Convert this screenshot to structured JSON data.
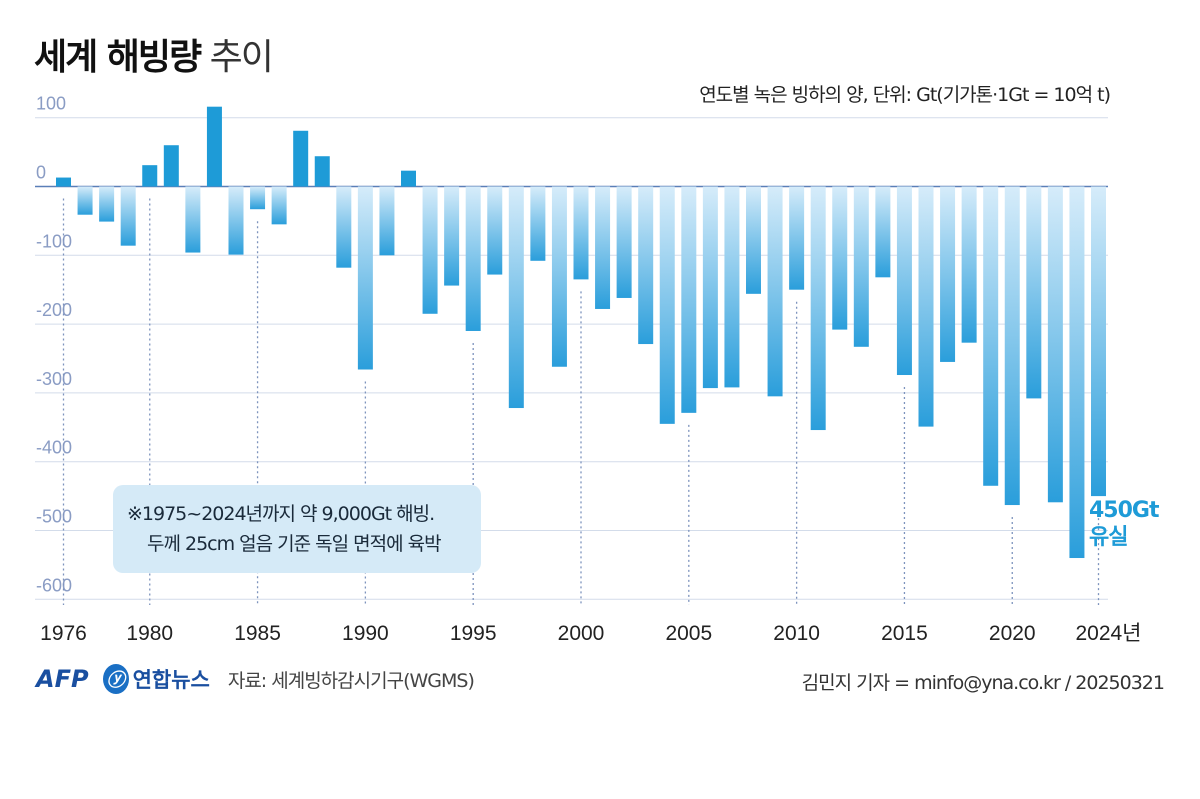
{
  "title_bold": "세계 해빙량",
  "title_light": "추이",
  "subtitle": "연도별 녹은 빙하의 양, 단위: Gt(기가톤·1Gt = 10억 t)",
  "note": [
    "※1975~2024년까지 약 9,000Gt 해빙.",
    "두께 25cm 얼음 기준 독일 면적에 육박"
  ],
  "callout": [
    "450Gt",
    "유실"
  ],
  "footer": {
    "afp": "AFP",
    "yna": "연합뉴스",
    "source": "자료: 세계빙하감시기구(WGMS)",
    "credit": "김민지 기자 = minfo@yna.co.kr / 20250321"
  },
  "colors": {
    "positive": "#1e9bd7",
    "negative_top": "#d6ecfa",
    "negative_bottom": "#2a9edb",
    "grid": "#d3dcea",
    "axis_label": "#8a9cc4"
  },
  "chart_data": {
    "type": "bar",
    "title": "세계 해빙량 추이",
    "ylabel": "Gt",
    "ylim": [
      -620,
      120
    ],
    "yticks": [
      100,
      0,
      -100,
      -200,
      -300,
      -400,
      -500,
      -600
    ],
    "ytick_labels": [
      "100",
      "0",
      "-100",
      "-200",
      "-300",
      "-400",
      "-500",
      "-600"
    ],
    "grid": true,
    "xtick_years": [
      1976,
      1980,
      1985,
      1990,
      1995,
      2000,
      2005,
      2010,
      2015,
      2020,
      2024
    ],
    "xtick_labels": [
      "1976",
      "1980",
      "1985",
      "1990",
      "1995",
      "2000",
      "2005",
      "2010",
      "2015",
      "2020",
      "2024년"
    ],
    "categories": [
      1976,
      1977,
      1978,
      1979,
      1980,
      1981,
      1982,
      1983,
      1984,
      1985,
      1986,
      1987,
      1988,
      1989,
      1990,
      1991,
      1992,
      1993,
      1994,
      1995,
      1996,
      1997,
      1998,
      1999,
      2000,
      2001,
      2002,
      2003,
      2004,
      2005,
      2006,
      2007,
      2008,
      2009,
      2010,
      2011,
      2012,
      2013,
      2014,
      2015,
      2016,
      2017,
      2018,
      2019,
      2020,
      2021,
      2022,
      2023,
      2024
    ],
    "values": [
      13,
      -41,
      -51,
      -86,
      31,
      60,
      -96,
      116,
      -99,
      -33,
      -55,
      81,
      44,
      -118,
      -266,
      -100,
      23,
      -185,
      -144,
      -210,
      -128,
      -322,
      -108,
      -262,
      -135,
      -178,
      -162,
      -229,
      -345,
      -329,
      -293,
      -292,
      -156,
      -305,
      -150,
      -354,
      -208,
      -233,
      -132,
      -274,
      -349,
      -255,
      -227,
      -435,
      -463,
      -308,
      -459,
      -540,
      -450
    ]
  }
}
